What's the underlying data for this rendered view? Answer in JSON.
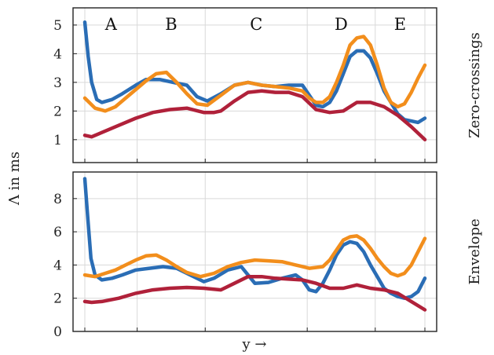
{
  "chart_data": {
    "type": "line",
    "ylabel": "Λ in ms",
    "xlabel": "y →",
    "regions": [
      "A",
      "B",
      "C",
      "D",
      "E"
    ],
    "region_bounds": [
      0,
      0.154,
      0.354,
      0.654,
      0.854,
      1.0
    ],
    "x_gridlines": [
      0,
      0.154,
      0.354,
      0.654,
      0.854,
      1.0
    ],
    "grid": true,
    "colors": {
      "series_1": "#2a6db5",
      "series_2": "#f28e1c",
      "series_3": "#b0213a"
    },
    "panels": [
      {
        "side_label": "Zero-crossings",
        "ylim": [
          0.2,
          5.6
        ],
        "yticks": [
          1,
          2,
          3,
          4,
          5
        ],
        "ytick_labels": [
          "1",
          "2",
          "3",
          "4",
          "5"
        ],
        "series": [
          {
            "color_key": "series_1",
            "x": [
              0,
              0.01,
              0.02,
              0.035,
              0.05,
              0.08,
              0.11,
              0.15,
              0.18,
              0.22,
              0.26,
              0.3,
              0.33,
              0.36,
              0.4,
              0.44,
              0.48,
              0.52,
              0.56,
              0.6,
              0.64,
              0.66,
              0.68,
              0.7,
              0.72,
              0.74,
              0.76,
              0.78,
              0.8,
              0.82,
              0.84,
              0.86,
              0.88,
              0.9,
              0.92,
              0.94,
              0.96,
              0.98,
              1.0
            ],
            "y": [
              5.1,
              3.9,
              3.0,
              2.4,
              2.3,
              2.4,
              2.6,
              2.9,
              3.1,
              3.1,
              3.0,
              2.9,
              2.5,
              2.35,
              2.6,
              2.9,
              3.0,
              2.9,
              2.85,
              2.9,
              2.9,
              2.55,
              2.2,
              2.15,
              2.3,
              2.7,
              3.3,
              3.9,
              4.1,
              4.1,
              3.85,
              3.3,
              2.7,
              2.3,
              1.9,
              1.7,
              1.65,
              1.6,
              1.75
            ]
          },
          {
            "color_key": "series_2",
            "x": [
              0,
              0.03,
              0.06,
              0.09,
              0.12,
              0.15,
              0.18,
              0.21,
              0.24,
              0.27,
              0.3,
              0.33,
              0.36,
              0.4,
              0.44,
              0.48,
              0.52,
              0.56,
              0.6,
              0.64,
              0.66,
              0.68,
              0.7,
              0.72,
              0.74,
              0.76,
              0.78,
              0.8,
              0.82,
              0.84,
              0.86,
              0.88,
              0.9,
              0.92,
              0.94,
              0.96,
              0.98,
              1.0
            ],
            "y": [
              2.45,
              2.1,
              2.0,
              2.15,
              2.45,
              2.75,
              3.05,
              3.3,
              3.35,
              3.0,
              2.6,
              2.25,
              2.2,
              2.55,
              2.9,
              3.0,
              2.9,
              2.85,
              2.8,
              2.7,
              2.45,
              2.3,
              2.3,
              2.5,
              3.0,
              3.6,
              4.3,
              4.55,
              4.6,
              4.3,
              3.6,
              2.8,
              2.3,
              2.15,
              2.25,
              2.65,
              3.15,
              3.6
            ]
          },
          {
            "color_key": "series_3",
            "x": [
              0,
              0.02,
              0.05,
              0.1,
              0.15,
              0.2,
              0.25,
              0.3,
              0.35,
              0.38,
              0.4,
              0.44,
              0.48,
              0.52,
              0.56,
              0.6,
              0.64,
              0.68,
              0.72,
              0.76,
              0.8,
              0.84,
              0.88,
              0.92,
              0.96,
              1.0
            ],
            "y": [
              1.15,
              1.1,
              1.25,
              1.5,
              1.75,
              1.95,
              2.05,
              2.1,
              1.95,
              1.95,
              2.0,
              2.35,
              2.65,
              2.7,
              2.65,
              2.65,
              2.5,
              2.05,
              1.95,
              2.0,
              2.3,
              2.3,
              2.15,
              1.85,
              1.45,
              1.0
            ]
          }
        ]
      },
      {
        "side_label": "Envelope",
        "ylim": [
          0,
          9.6
        ],
        "yticks": [
          0,
          2,
          4,
          6,
          8
        ],
        "ytick_labels": [
          "0",
          "2",
          "4",
          "6",
          "8"
        ],
        "series": [
          {
            "color_key": "series_1",
            "x": [
              0,
              0.008,
              0.018,
              0.03,
              0.05,
              0.08,
              0.11,
              0.15,
              0.19,
              0.23,
              0.27,
              0.31,
              0.35,
              0.38,
              0.42,
              0.46,
              0.48,
              0.5,
              0.54,
              0.58,
              0.62,
              0.64,
              0.66,
              0.68,
              0.7,
              0.72,
              0.74,
              0.76,
              0.78,
              0.8,
              0.82,
              0.84,
              0.86,
              0.88,
              0.9,
              0.92,
              0.94,
              0.96,
              0.98,
              1.0
            ],
            "y": [
              9.2,
              7.0,
              4.4,
              3.4,
              3.1,
              3.2,
              3.4,
              3.7,
              3.8,
              3.9,
              3.8,
              3.4,
              3.0,
              3.2,
              3.7,
              3.9,
              3.4,
              2.9,
              2.95,
              3.2,
              3.4,
              3.1,
              2.5,
              2.4,
              2.9,
              3.7,
              4.6,
              5.2,
              5.4,
              5.3,
              4.8,
              4.0,
              3.3,
              2.6,
              2.3,
              2.1,
              2.0,
              2.1,
              2.4,
              3.2
            ]
          },
          {
            "color_key": "series_2",
            "x": [
              0,
              0.03,
              0.06,
              0.09,
              0.12,
              0.15,
              0.18,
              0.21,
              0.24,
              0.27,
              0.3,
              0.34,
              0.38,
              0.42,
              0.46,
              0.5,
              0.54,
              0.58,
              0.62,
              0.66,
              0.7,
              0.72,
              0.74,
              0.76,
              0.78,
              0.8,
              0.82,
              0.84,
              0.86,
              0.88,
              0.9,
              0.92,
              0.94,
              0.96,
              0.98,
              1.0
            ],
            "y": [
              3.4,
              3.3,
              3.5,
              3.7,
              4.0,
              4.3,
              4.55,
              4.6,
              4.3,
              3.9,
              3.55,
              3.3,
              3.5,
              3.9,
              4.15,
              4.3,
              4.25,
              4.2,
              4.0,
              3.8,
              3.9,
              4.3,
              4.9,
              5.5,
              5.7,
              5.75,
              5.5,
              5.0,
              4.4,
              3.9,
              3.5,
              3.35,
              3.5,
              4.0,
              4.8,
              5.6
            ]
          },
          {
            "color_key": "series_3",
            "x": [
              0,
              0.02,
              0.05,
              0.1,
              0.15,
              0.2,
              0.25,
              0.3,
              0.35,
              0.4,
              0.44,
              0.48,
              0.52,
              0.56,
              0.6,
              0.64,
              0.68,
              0.72,
              0.76,
              0.8,
              0.84,
              0.88,
              0.92,
              0.96,
              1.0
            ],
            "y": [
              1.8,
              1.75,
              1.8,
              2.0,
              2.3,
              2.5,
              2.6,
              2.65,
              2.6,
              2.5,
              2.9,
              3.3,
              3.3,
              3.2,
              3.15,
              3.1,
              2.9,
              2.6,
              2.6,
              2.8,
              2.6,
              2.5,
              2.3,
              1.8,
              1.3
            ]
          }
        ]
      }
    ]
  }
}
